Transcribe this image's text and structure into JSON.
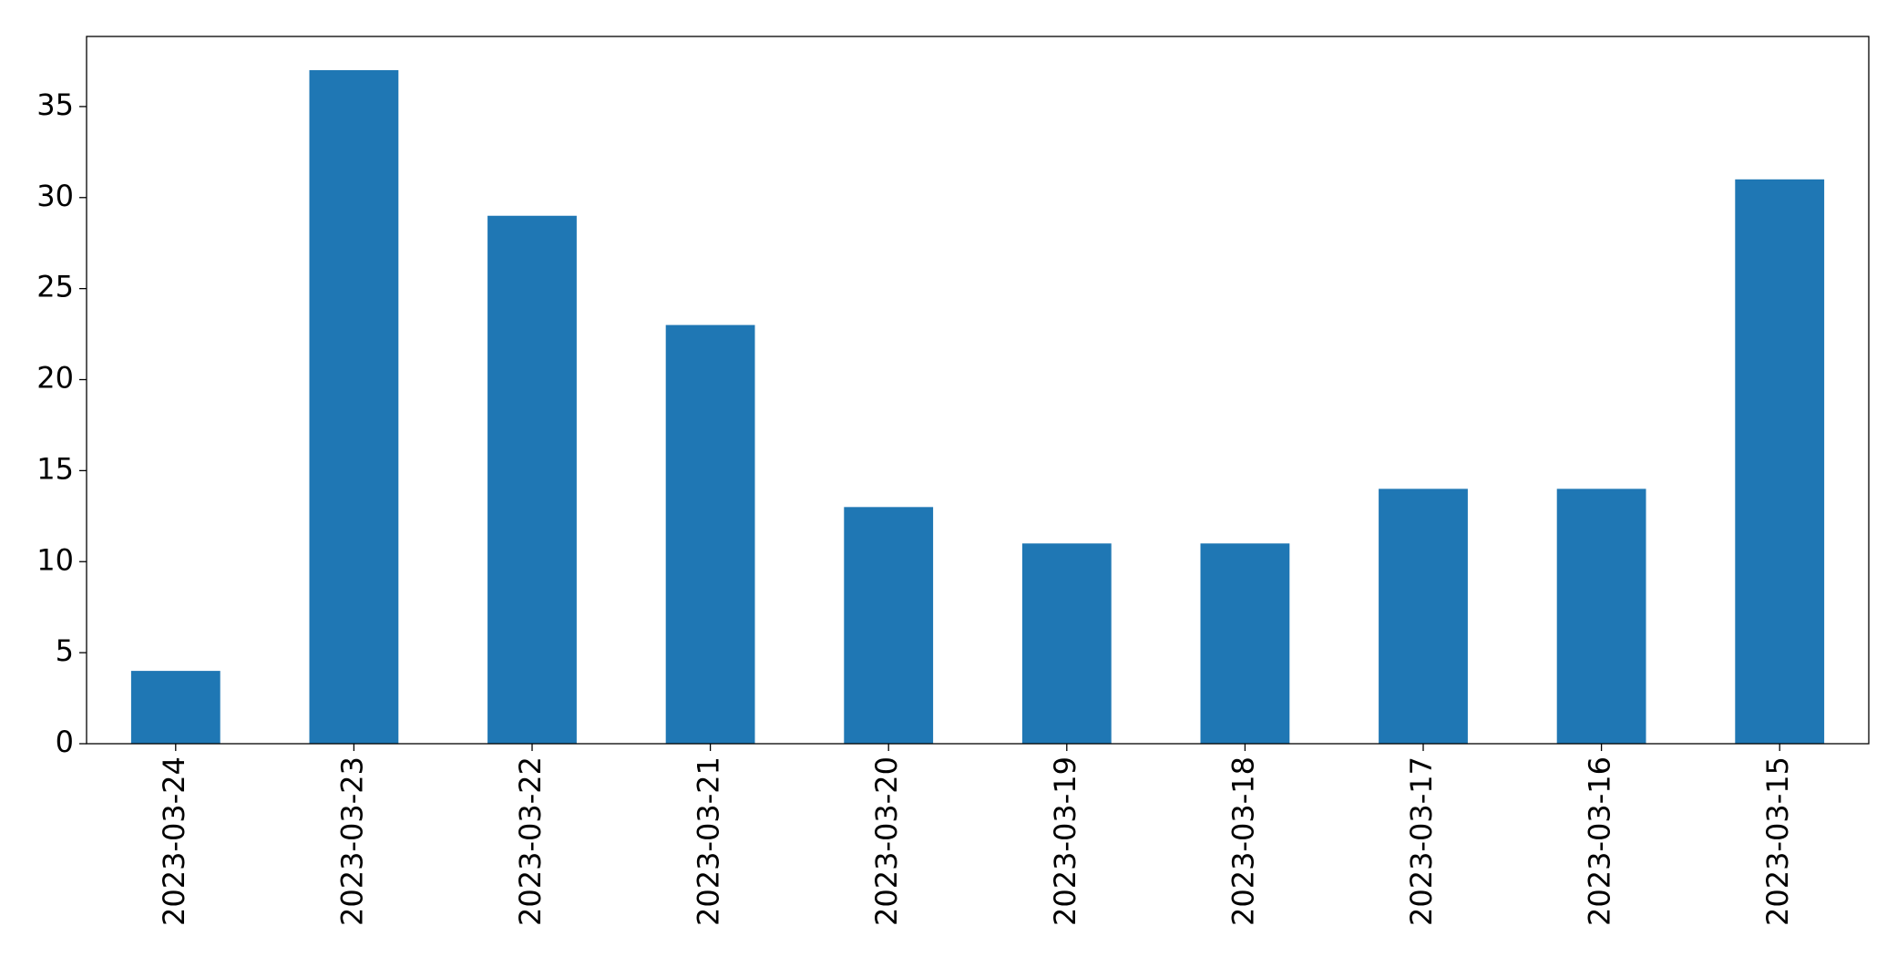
{
  "chart_data": {
    "type": "bar",
    "categories": [
      "2023-03-24",
      "2023-03-23",
      "2023-03-22",
      "2023-03-21",
      "2023-03-20",
      "2023-03-19",
      "2023-03-18",
      "2023-03-17",
      "2023-03-16",
      "2023-03-15"
    ],
    "values": [
      4,
      37,
      29,
      23,
      13,
      11,
      11,
      14,
      14,
      31
    ],
    "color": "#1f77b4",
    "ylim": [
      0,
      38.85
    ],
    "yticks": [
      0,
      5,
      10,
      15,
      20,
      25,
      30,
      35
    ],
    "grid": false
  }
}
